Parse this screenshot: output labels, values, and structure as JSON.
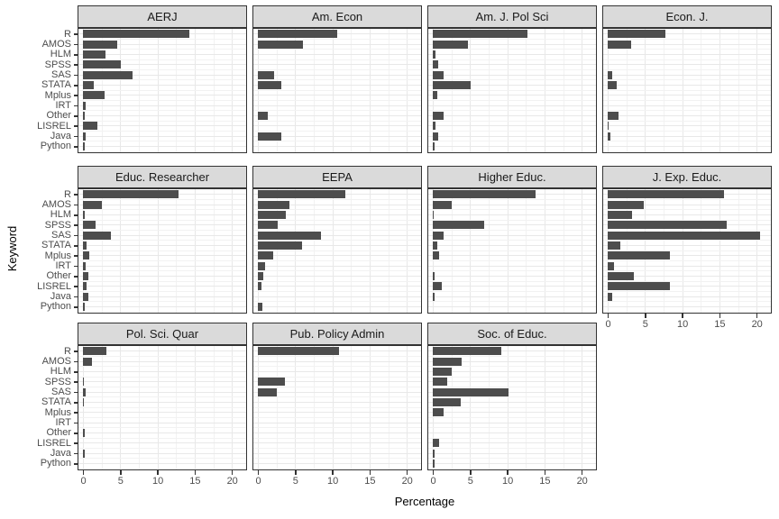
{
  "chart_data": {
    "type": "bar",
    "orientation": "horizontal",
    "title": "",
    "xlabel": "Percentage",
    "ylabel": "Keyword",
    "categories": [
      "R",
      "AMOS",
      "HLM",
      "SPSS",
      "SAS",
      "STATA",
      "Mplus",
      "IRT",
      "Other",
      "LISREL",
      "Java",
      "Python"
    ],
    "x_ticks": [
      0,
      5,
      10,
      15,
      20
    ],
    "x_minor_ticks": [
      2.5,
      7.5,
      12.5,
      17.5
    ],
    "xlim": [
      -0.8,
      22.0
    ],
    "grid": "major and minor, light grey on white",
    "legend": "none",
    "facet_layout": "4 columns x 3 rows, 11 panels",
    "panels": [
      {
        "title": "AERJ",
        "values": [
          14.3,
          4.6,
          3.0,
          5.1,
          6.7,
          1.5,
          2.9,
          0.4,
          0.2,
          1.9,
          0.4,
          0.2
        ]
      },
      {
        "title": "Am. Econ",
        "values": [
          10.7,
          6.1,
          0,
          0,
          2.2,
          3.1,
          0,
          0,
          1.3,
          0,
          3.1,
          0
        ]
      },
      {
        "title": "Am. J. Pol Sci",
        "values": [
          12.7,
          4.7,
          0.4,
          0.7,
          1.5,
          5.1,
          0.6,
          0,
          1.5,
          0.4,
          0.7,
          0.2
        ]
      },
      {
        "title": "Econ. J.",
        "values": [
          7.7,
          3.1,
          0,
          0,
          0.6,
          1.2,
          0,
          0,
          1.5,
          0.1,
          0.4,
          0
        ]
      },
      {
        "title": "Educ. Researcher",
        "values": [
          12.8,
          2.6,
          0.3,
          1.7,
          3.8,
          0.5,
          0.8,
          0.4,
          0.7,
          0.5,
          0.7,
          0.2
        ]
      },
      {
        "title": "EEPA",
        "values": [
          11.8,
          4.2,
          3.7,
          2.7,
          8.5,
          5.9,
          2.1,
          1.0,
          0.7,
          0.5,
          0,
          0.6
        ]
      },
      {
        "title": "Higher Educ.",
        "values": [
          13.8,
          2.6,
          0.1,
          6.9,
          1.5,
          0.6,
          0.8,
          0,
          0.3,
          1.2,
          0.3,
          0
        ]
      },
      {
        "title": "J. Exp. Educ.",
        "values": [
          15.6,
          4.8,
          3.3,
          16.0,
          20.4,
          1.7,
          8.3,
          0.9,
          3.5,
          8.3,
          0.6,
          0
        ]
      },
      {
        "title": "Pol. Sci. Quar",
        "values": [
          3.1,
          1.2,
          0,
          0.15,
          0.4,
          0.15,
          0,
          0,
          0.3,
          0,
          0.3,
          0
        ]
      },
      {
        "title": "Pub. Policy Admin",
        "values": [
          10.9,
          0,
          0,
          3.6,
          2.5,
          0,
          0,
          0,
          0,
          0,
          0,
          0
        ]
      },
      {
        "title": "Soc. of Educ.",
        "values": [
          9.2,
          3.9,
          2.6,
          1.9,
          10.2,
          3.8,
          1.5,
          0,
          0,
          0.8,
          0.2,
          0.2
        ]
      }
    ],
    "colors": {
      "bar": "#4D4D4D",
      "strip_background": "#DADADA",
      "panel_border": "#333333",
      "grid_major": "#E8E8E8",
      "grid_minor": "#F2F2F2",
      "tick_text": "#4D4D4D",
      "axis_title_text": "#000000"
    }
  }
}
